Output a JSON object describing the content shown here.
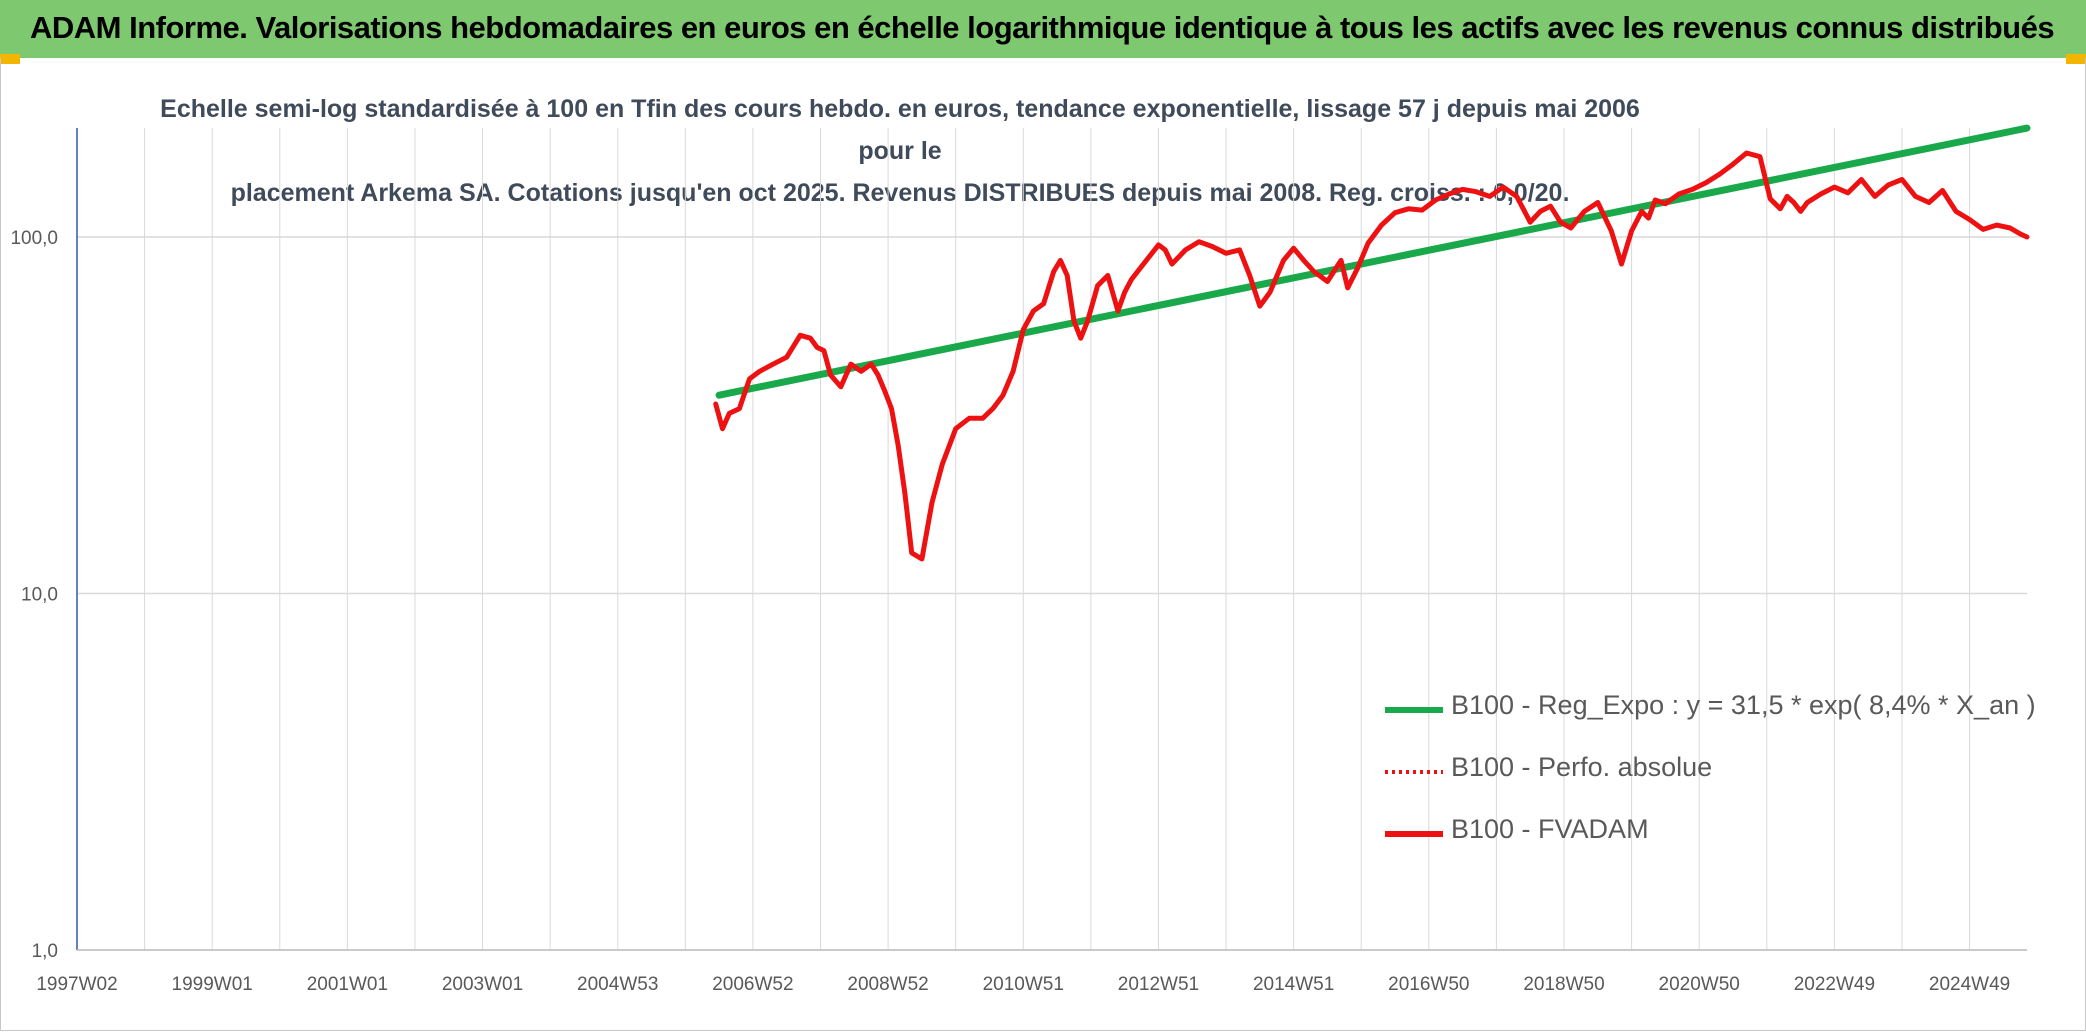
{
  "banner": {
    "title": "ADAM Informe. Valorisations hebdomadaires en euros en échelle logarithmique identique à tous les actifs avec les revenus connus distribués"
  },
  "colors": {
    "banner": "#7ec870",
    "trend": "#1aa94a",
    "fvadam": "#ee1111",
    "perfo": "#ee1111",
    "grid": "#d9d9d9",
    "accent": "#f2b600"
  },
  "chart_data": {
    "type": "line",
    "title_line1": "Echelle semi-log standardisée à 100 en Tfin des cours hebdo. en euros, tendance exponentielle, lissage 57 j depuis mai 2006 pour le",
    "title_line2": "placement Arkema SA. Cotations jusqu'en oct 2025. Revenus DISTRIBUES depuis mai 2008. Reg. croiss. : 0,0/20.",
    "y_scale": "log",
    "ylim": [
      1,
      200
    ],
    "xlim": [
      1997.0,
      2025.85
    ],
    "y_ticks": [
      {
        "value": 100,
        "label": "100,0"
      },
      {
        "value": 10,
        "label": "10,0"
      },
      {
        "value": 1,
        "label": "1,0"
      }
    ],
    "x_ticks": [
      {
        "value": 1997.0,
        "label": "1997W02"
      },
      {
        "value": 1999.0,
        "label": "1999W01"
      },
      {
        "value": 2001.0,
        "label": "2001W01"
      },
      {
        "value": 2003.0,
        "label": "2003W01"
      },
      {
        "value": 2005.0,
        "label": "2004W53"
      },
      {
        "value": 2007.0,
        "label": "2006W52"
      },
      {
        "value": 2009.0,
        "label": "2008W52"
      },
      {
        "value": 2011.0,
        "label": "2010W51"
      },
      {
        "value": 2013.0,
        "label": "2012W51"
      },
      {
        "value": 2015.0,
        "label": "2014W51"
      },
      {
        "value": 2017.0,
        "label": "2016W50"
      },
      {
        "value": 2019.0,
        "label": "2018W50"
      },
      {
        "value": 2021.0,
        "label": "2020W50"
      },
      {
        "value": 2023.0,
        "label": "2022W49"
      },
      {
        "value": 2025.0,
        "label": "2024W49"
      }
    ],
    "grid": true,
    "legend_position": "bottom-right",
    "series": [
      {
        "name": "B100 - Reg_Expo : y = 31,5 * exp( 8,4% *  X_an )",
        "style": "solid-green",
        "x": [
          2006.5,
          2025.85
        ],
        "y": [
          36,
          202
        ]
      },
      {
        "name": "B100 - Perfo. absolue",
        "style": "dotted-red",
        "x": [],
        "y": []
      },
      {
        "name": "B100 - FVADAM",
        "style": "solid-red",
        "x": [
          2006.45,
          2006.55,
          2006.65,
          2006.8,
          2006.95,
          2007.1,
          2007.3,
          2007.5,
          2007.7,
          2007.85,
          2007.95,
          2008.05,
          2008.15,
          2008.3,
          2008.45,
          2008.6,
          2008.75,
          2008.85,
          2008.95,
          2009.05,
          2009.15,
          2009.25,
          2009.35,
          2009.5,
          2009.65,
          2009.8,
          2010.0,
          2010.2,
          2010.4,
          2010.55,
          2010.7,
          2010.85,
          2011.0,
          2011.15,
          2011.3,
          2011.45,
          2011.55,
          2011.65,
          2011.75,
          2011.85,
          2011.95,
          2012.1,
          2012.25,
          2012.4,
          2012.5,
          2012.6,
          2012.8,
          2013.0,
          2013.1,
          2013.2,
          2013.4,
          2013.6,
          2013.8,
          2014.0,
          2014.2,
          2014.35,
          2014.5,
          2014.65,
          2014.85,
          2015.0,
          2015.15,
          2015.3,
          2015.5,
          2015.7,
          2015.8,
          2015.95,
          2016.1,
          2016.3,
          2016.5,
          2016.7,
          2016.9,
          2017.1,
          2017.3,
          2017.5,
          2017.7,
          2017.9,
          2018.1,
          2018.3,
          2018.5,
          2018.65,
          2018.8,
          2018.95,
          2019.1,
          2019.3,
          2019.5,
          2019.7,
          2019.85,
          2020.0,
          2020.15,
          2020.25,
          2020.35,
          2020.5,
          2020.7,
          2020.9,
          2021.1,
          2021.3,
          2021.5,
          2021.7,
          2021.9,
          2022.05,
          2022.2,
          2022.3,
          2022.4,
          2022.5,
          2022.6,
          2022.8,
          2023.0,
          2023.2,
          2023.4,
          2023.6,
          2023.8,
          2024.0,
          2024.2,
          2024.4,
          2024.6,
          2024.8,
          2025.0,
          2025.2,
          2025.4,
          2025.6,
          2025.75,
          2025.85
        ],
        "y": [
          34,
          29,
          32,
          33,
          40,
          42,
          44,
          46,
          53,
          52,
          49,
          48,
          41,
          38,
          44,
          42,
          44,
          41,
          37,
          33,
          26,
          19,
          13,
          12.5,
          18,
          23,
          29,
          31,
          31,
          33,
          36,
          42,
          55,
          62,
          65,
          80,
          86,
          78,
          58,
          52,
          58,
          73,
          78,
          62,
          70,
          76,
          85,
          95,
          92,
          84,
          92,
          97,
          94,
          90,
          92,
          78,
          64,
          70,
          86,
          93,
          86,
          80,
          75,
          86,
          72,
          82,
          96,
          108,
          117,
          120,
          119,
          127,
          132,
          136,
          134,
          130,
          138,
          130,
          110,
          118,
          122,
          110,
          106,
          118,
          125,
          104,
          84,
          104,
          118,
          113,
          127,
          124,
          132,
          136,
          142,
          150,
          160,
          172,
          168,
          128,
          120,
          130,
          125,
          118,
          125,
          132,
          138,
          133,
          145,
          130,
          140,
          145,
          130,
          125,
          135,
          118,
          112,
          105,
          108,
          106,
          102,
          100
        ]
      }
    ]
  }
}
